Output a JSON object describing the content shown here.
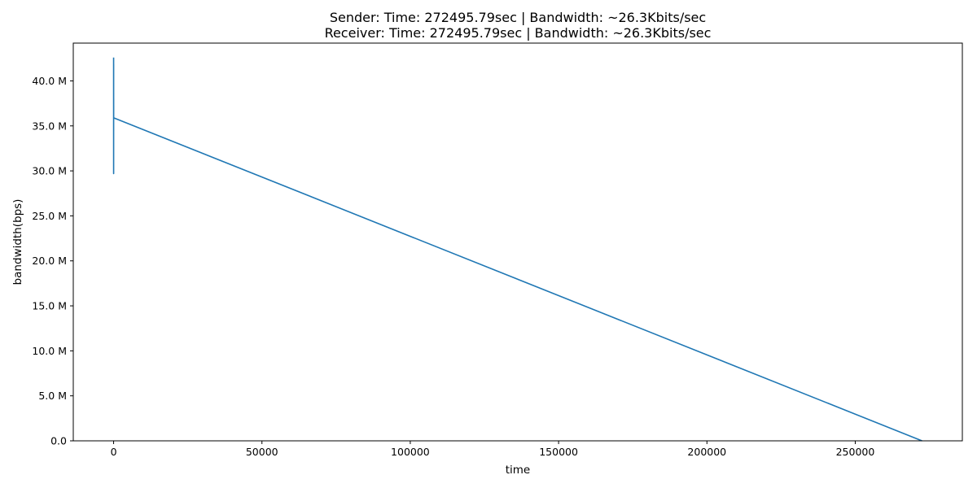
{
  "chart_data": {
    "type": "line",
    "title_lines": [
      "Sender: Time: 272495.79sec | Bandwidth: ~26.3Kbits/sec",
      "Receiver: Time: 272495.79sec | Bandwidth: ~26.3Kbits/sec"
    ],
    "xlabel": "time",
    "ylabel": "bandwidth(bps)",
    "xlim": [
      -13600,
      286100
    ],
    "ylim": [
      0,
      44200000
    ],
    "xticks": [
      0,
      50000,
      100000,
      150000,
      200000,
      250000
    ],
    "xtick_labels": [
      "0",
      "50000",
      "100000",
      "150000",
      "200000",
      "250000"
    ],
    "yticks": [
      0,
      5000000,
      10000000,
      15000000,
      20000000,
      25000000,
      30000000,
      35000000,
      40000000
    ],
    "ytick_labels": [
      "0.0",
      "5.0 M",
      "10.0 M",
      "15.0 M",
      "20.0 M",
      "25.0 M",
      "30.0 M",
      "35.0 M",
      "40.0 M"
    ],
    "grid": false,
    "series": [
      {
        "color": "#1f77b4",
        "x": [
          0,
          1,
          2,
          3,
          4,
          5,
          6,
          7,
          8,
          9,
          10,
          11,
          12,
          13,
          14,
          15,
          16,
          17,
          18,
          19,
          20,
          272496
        ],
        "y": [
          42600000,
          33500000,
          40100000,
          35200000,
          29700000,
          39800000,
          36500000,
          41900000,
          34400000,
          38700000,
          37000000,
          36100000,
          35600000,
          37900000,
          36300000,
          38000000,
          35900000,
          37300000,
          36400000,
          35800000,
          35900000,
          0
        ]
      }
    ]
  }
}
